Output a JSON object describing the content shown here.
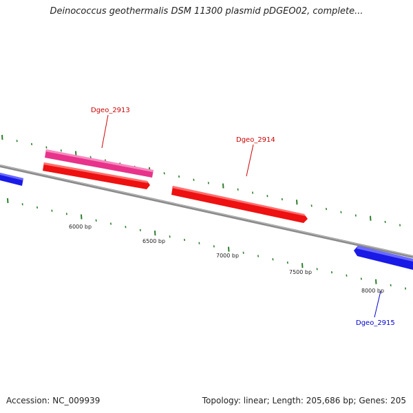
{
  "title": "Deinococcus geothermalis DSM 11300 plasmid pDGEO02, complete...",
  "footer": {
    "accession": "Accession: NC_009939",
    "summary": "Topology: linear; Length: 205,686 bp; Genes: 205"
  },
  "colors": {
    "background": "#ffffff",
    "backbone": "#8a8a8a",
    "tick": "#2d7d2d",
    "forward_gene": "#ee1111",
    "reverse_gene": "#1a1ae6",
    "highlight_gene": "#e8338a",
    "label_forward": "#cc0000",
    "label_reverse": "#0000cc"
  },
  "ruler_labels": [
    "6000 bp",
    "6500 bp",
    "7000 bp",
    "7500 bp",
    "8000 bp"
  ],
  "genes": [
    {
      "name": "Dgeo_2913",
      "strand": "forward",
      "type": "highlight"
    },
    {
      "name": "Dgeo_2914",
      "strand": "forward",
      "type": "cds"
    },
    {
      "name": "Dgeo_2915",
      "strand": "reverse",
      "type": "cds"
    }
  ]
}
